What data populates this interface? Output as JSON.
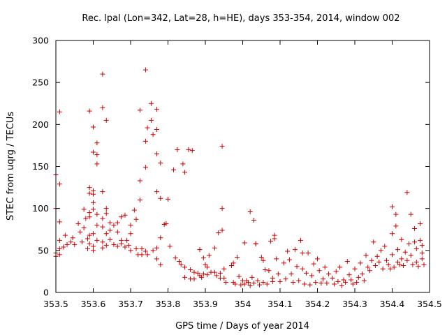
{
  "chart_data": {
    "type": "scatter",
    "title": "Rec. lpal (Lon=342, Lat=28, h=HE), days 353-354, 2014, window 002",
    "xlabel": "GPS time / Days of year 2014",
    "ylabel": "STEC from uqrg / TECUs",
    "xlim": [
      353.5,
      354.5
    ],
    "ylim": [
      0,
      300
    ],
    "x_ticks": [
      353.5,
      353.6,
      353.7,
      353.8,
      353.9,
      354.0,
      354.1,
      354.2,
      354.3,
      354.4,
      354.5
    ],
    "x_tick_labels": [
      "353.5",
      "353.6",
      "353.7",
      "353.8",
      "353.9",
      "354",
      "354.1",
      "354.2",
      "354.3",
      "354.4",
      "354.5"
    ],
    "y_ticks": [
      0,
      50,
      100,
      150,
      200,
      250,
      300
    ],
    "y_tick_labels": [
      "0",
      "50",
      "100",
      "150",
      "200",
      "250",
      "300"
    ],
    "grid": false,
    "marker": "+",
    "marker_color": "#cc0000",
    "points": [
      [
        353.5,
        140
      ],
      [
        353.5,
        100
      ],
      [
        353.5,
        47
      ],
      [
        353.5,
        43
      ],
      [
        353.51,
        215
      ],
      [
        353.51,
        129
      ],
      [
        353.51,
        84
      ],
      [
        353.51,
        62
      ],
      [
        353.51,
        52
      ],
      [
        353.51,
        45
      ],
      [
        353.52,
        54
      ],
      [
        353.525,
        68
      ],
      [
        353.53,
        57
      ],
      [
        353.54,
        60
      ],
      [
        353.545,
        65
      ],
      [
        353.55,
        57
      ],
      [
        353.56,
        82
      ],
      [
        353.565,
        72
      ],
      [
        353.57,
        60
      ],
      [
        353.575,
        99
      ],
      [
        353.575,
        77
      ],
      [
        353.58,
        88
      ],
      [
        353.585,
        64
      ],
      [
        353.585,
        52
      ],
      [
        353.59,
        216
      ],
      [
        353.59,
        125
      ],
      [
        353.59,
        118
      ],
      [
        353.59,
        95
      ],
      [
        353.59,
        90
      ],
      [
        353.59,
        68
      ],
      [
        353.59,
        58
      ],
      [
        353.6,
        197
      ],
      [
        353.6,
        167
      ],
      [
        353.6,
        121
      ],
      [
        353.6,
        117
      ],
      [
        353.6,
        107
      ],
      [
        353.6,
        99
      ],
      [
        353.6,
        70
      ],
      [
        353.6,
        55
      ],
      [
        353.6,
        50
      ],
      [
        353.61,
        178
      ],
      [
        353.61,
        164
      ],
      [
        353.61,
        153
      ],
      [
        353.61,
        93
      ],
      [
        353.61,
        80
      ],
      [
        353.61,
        62
      ],
      [
        353.625,
        260
      ],
      [
        353.625,
        220
      ],
      [
        353.625,
        120
      ],
      [
        353.625,
        88
      ],
      [
        353.625,
        78
      ],
      [
        353.625,
        60
      ],
      [
        353.625,
        53
      ],
      [
        353.635,
        205
      ],
      [
        353.635,
        100
      ],
      [
        353.635,
        94
      ],
      [
        353.635,
        70
      ],
      [
        353.635,
        56
      ],
      [
        353.645,
        83
      ],
      [
        353.645,
        74
      ],
      [
        353.645,
        63
      ],
      [
        353.655,
        80
      ],
      [
        353.655,
        57
      ],
      [
        353.665,
        83
      ],
      [
        353.665,
        72
      ],
      [
        353.665,
        55
      ],
      [
        353.675,
        90
      ],
      [
        353.675,
        62
      ],
      [
        353.675,
        58
      ],
      [
        353.685,
        92
      ],
      [
        353.685,
        54
      ],
      [
        353.69,
        62
      ],
      [
        353.695,
        56
      ],
      [
        353.7,
        80
      ],
      [
        353.7,
        70
      ],
      [
        353.7,
        50
      ],
      [
        353.71,
        98
      ],
      [
        353.715,
        87
      ],
      [
        353.715,
        52
      ],
      [
        353.72,
        45
      ],
      [
        353.725,
        217
      ],
      [
        353.725,
        133
      ],
      [
        353.725,
        110
      ],
      [
        353.73,
        52
      ],
      [
        353.73,
        45
      ],
      [
        353.74,
        265
      ],
      [
        353.74,
        180
      ],
      [
        353.74,
        149
      ],
      [
        353.74,
        49
      ],
      [
        353.745,
        196
      ],
      [
        353.745,
        45
      ],
      [
        353.755,
        225
      ],
      [
        353.755,
        205
      ],
      [
        353.76,
        188
      ],
      [
        353.76,
        50
      ],
      [
        353.77,
        218
      ],
      [
        353.77,
        194
      ],
      [
        353.77,
        165
      ],
      [
        353.77,
        120
      ],
      [
        353.77,
        53
      ],
      [
        353.77,
        40
      ],
      [
        353.78,
        154
      ],
      [
        353.78,
        112
      ],
      [
        353.78,
        65
      ],
      [
        353.78,
        33
      ],
      [
        353.79,
        81
      ],
      [
        353.795,
        82
      ],
      [
        353.8,
        111
      ],
      [
        353.805,
        55
      ],
      [
        353.815,
        146
      ],
      [
        353.82,
        41
      ],
      [
        353.825,
        170
      ],
      [
        353.83,
        37
      ],
      [
        353.835,
        33
      ],
      [
        353.84,
        153
      ],
      [
        353.845,
        143
      ],
      [
        353.845,
        30
      ],
      [
        353.845,
        18
      ],
      [
        353.855,
        170
      ],
      [
        353.86,
        27
      ],
      [
        353.86,
        16
      ],
      [
        353.865,
        169
      ],
      [
        353.87,
        24
      ],
      [
        353.87,
        16
      ],
      [
        353.88,
        23
      ],
      [
        353.885,
        51
      ],
      [
        353.885,
        20
      ],
      [
        353.89,
        18
      ],
      [
        353.895,
        41
      ],
      [
        353.895,
        22
      ],
      [
        353.9,
        33
      ],
      [
        353.905,
        30
      ],
      [
        353.905,
        21
      ],
      [
        353.91,
        44
      ],
      [
        353.915,
        24
      ],
      [
        353.925,
        53
      ],
      [
        353.925,
        24
      ],
      [
        353.93,
        20
      ],
      [
        353.935,
        71
      ],
      [
        353.94,
        23
      ],
      [
        353.94,
        17
      ],
      [
        353.945,
        174
      ],
      [
        353.945,
        100
      ],
      [
        353.945,
        74
      ],
      [
        353.95,
        28
      ],
      [
        353.95,
        17
      ],
      [
        353.955,
        12
      ],
      [
        353.97,
        32
      ],
      [
        353.975,
        35
      ],
      [
        353.975,
        12
      ],
      [
        353.98,
        10
      ],
      [
        353.985,
        42
      ],
      [
        353.99,
        19
      ],
      [
        353.995,
        9
      ],
      [
        354.0,
        14
      ],
      [
        354.005,
        59
      ],
      [
        354.005,
        10
      ],
      [
        354.01,
        14
      ],
      [
        354.015,
        12
      ],
      [
        354.02,
        96
      ],
      [
        354.02,
        8
      ],
      [
        354.025,
        18
      ],
      [
        354.03,
        86
      ],
      [
        354.03,
        11
      ],
      [
        354.035,
        58
      ],
      [
        354.035,
        58
      ],
      [
        354.04,
        14
      ],
      [
        354.045,
        9
      ],
      [
        354.05,
        42
      ],
      [
        354.055,
        38
      ],
      [
        354.055,
        12
      ],
      [
        354.06,
        27
      ],
      [
        354.065,
        10
      ],
      [
        354.07,
        26
      ],
      [
        354.075,
        61
      ],
      [
        354.08,
        17
      ],
      [
        354.08,
        13
      ],
      [
        354.085,
        68
      ],
      [
        354.085,
        64
      ],
      [
        354.09,
        40
      ],
      [
        354.095,
        22
      ],
      [
        354.1,
        13
      ],
      [
        354.11,
        35
      ],
      [
        354.115,
        16
      ],
      [
        354.12,
        49
      ],
      [
        354.125,
        39
      ],
      [
        354.13,
        22
      ],
      [
        354.135,
        12
      ],
      [
        354.14,
        51
      ],
      [
        354.145,
        31
      ],
      [
        354.15,
        14
      ],
      [
        354.155,
        62
      ],
      [
        354.16,
        47
      ],
      [
        354.16,
        28
      ],
      [
        354.165,
        10
      ],
      [
        354.17,
        23
      ],
      [
        354.175,
        47
      ],
      [
        354.18,
        9
      ],
      [
        354.185,
        20
      ],
      [
        354.19,
        34
      ],
      [
        354.195,
        12
      ],
      [
        354.2,
        40
      ],
      [
        354.205,
        26
      ],
      [
        354.21,
        11
      ],
      [
        354.215,
        16
      ],
      [
        354.22,
        30
      ],
      [
        354.225,
        11
      ],
      [
        354.23,
        22
      ],
      [
        354.24,
        17
      ],
      [
        354.245,
        10
      ],
      [
        354.25,
        25
      ],
      [
        354.255,
        13
      ],
      [
        354.26,
        30
      ],
      [
        354.265,
        8
      ],
      [
        354.27,
        15
      ],
      [
        354.275,
        12
      ],
      [
        354.28,
        37
      ],
      [
        354.285,
        21
      ],
      [
        354.29,
        15
      ],
      [
        354.295,
        10
      ],
      [
        354.3,
        28
      ],
      [
        354.305,
        12
      ],
      [
        354.31,
        18
      ],
      [
        354.315,
        35
      ],
      [
        354.32,
        22
      ],
      [
        354.325,
        14
      ],
      [
        354.33,
        44
      ],
      [
        354.335,
        30
      ],
      [
        354.34,
        26
      ],
      [
        354.345,
        38
      ],
      [
        354.35,
        60
      ],
      [
        354.355,
        32
      ],
      [
        354.36,
        43
      ],
      [
        354.365,
        36
      ],
      [
        354.37,
        50
      ],
      [
        354.375,
        28
      ],
      [
        354.38,
        55
      ],
      [
        354.385,
        38
      ],
      [
        354.39,
        33
      ],
      [
        354.395,
        28
      ],
      [
        354.4,
        102
      ],
      [
        354.4,
        70
      ],
      [
        354.4,
        45
      ],
      [
        354.405,
        30
      ],
      [
        354.41,
        93
      ],
      [
        354.41,
        79
      ],
      [
        354.415,
        51
      ],
      [
        354.415,
        36
      ],
      [
        354.42,
        33
      ],
      [
        354.425,
        63
      ],
      [
        354.425,
        40
      ],
      [
        354.43,
        32
      ],
      [
        354.435,
        48
      ],
      [
        354.44,
        119
      ],
      [
        354.44,
        38
      ],
      [
        354.445,
        58
      ],
      [
        354.45,
        93
      ],
      [
        354.45,
        44
      ],
      [
        354.455,
        33
      ],
      [
        354.46,
        76
      ],
      [
        354.46,
        60
      ],
      [
        354.465,
        52
      ],
      [
        354.465,
        36
      ],
      [
        354.47,
        31
      ],
      [
        354.475,
        82
      ],
      [
        354.475,
        62
      ],
      [
        354.48,
        56
      ],
      [
        354.48,
        47
      ],
      [
        354.48,
        40
      ],
      [
        354.485,
        33
      ]
    ]
  }
}
